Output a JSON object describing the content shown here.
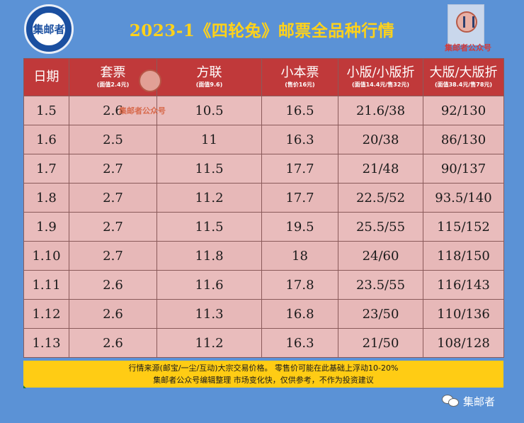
{
  "header": {
    "title": "2023-1《四轮兔》邮票全品种行情",
    "logo_left_text": "集邮者",
    "logo_right_text": "集邮者公众号"
  },
  "table": {
    "columns": [
      {
        "label": "日期",
        "sub": ""
      },
      {
        "label": "套票",
        "sub": "(面值2.4元)"
      },
      {
        "label": "方联",
        "sub": "(面值9.6)"
      },
      {
        "label": "小本票",
        "sub": "(售价16元)"
      },
      {
        "label": "小版/小版折",
        "sub": "(面值14.4元/售32元)"
      },
      {
        "label": "大版/大版折",
        "sub": "(面值38.4元/售78元)"
      }
    ],
    "rows": [
      [
        "1.5",
        "2.6",
        "10.5",
        "16.5",
        "21.6/38",
        "92/130"
      ],
      [
        "1.6",
        "2.5",
        "11",
        "16.3",
        "20/38",
        "86/130"
      ],
      [
        "1.7",
        "2.7",
        "11.5",
        "17.7",
        "21/48",
        "90/137"
      ],
      [
        "1.8",
        "2.7",
        "11.2",
        "17.7",
        "22.5/52",
        "93.5/140"
      ],
      [
        "1.9",
        "2.7",
        "11.5",
        "19.5",
        "25.5/55",
        "115/152"
      ],
      [
        "1.10",
        "2.7",
        "11.8",
        "18",
        "24/60",
        "118/150"
      ],
      [
        "1.11",
        "2.6",
        "11.6",
        "17.8",
        "23.5/55",
        "116/143"
      ],
      [
        "1.12",
        "2.6",
        "11.3",
        "16.8",
        "23/50",
        "110/136"
      ],
      [
        "1.13",
        "2.6",
        "11.2",
        "16.3",
        "21/50",
        "108/128"
      ]
    ]
  },
  "watermark": {
    "text": "集邮者公众号"
  },
  "footer": {
    "line1": "行情来源(邮宝/一尘/互动)大宗交易价格。 零售价可能在此基础上浮动10-20%",
    "line2": "集邮者公众号编辑整理 市场变化快，仅供参考，不作为投资建议"
  },
  "wechat": {
    "label": "集邮者"
  }
}
